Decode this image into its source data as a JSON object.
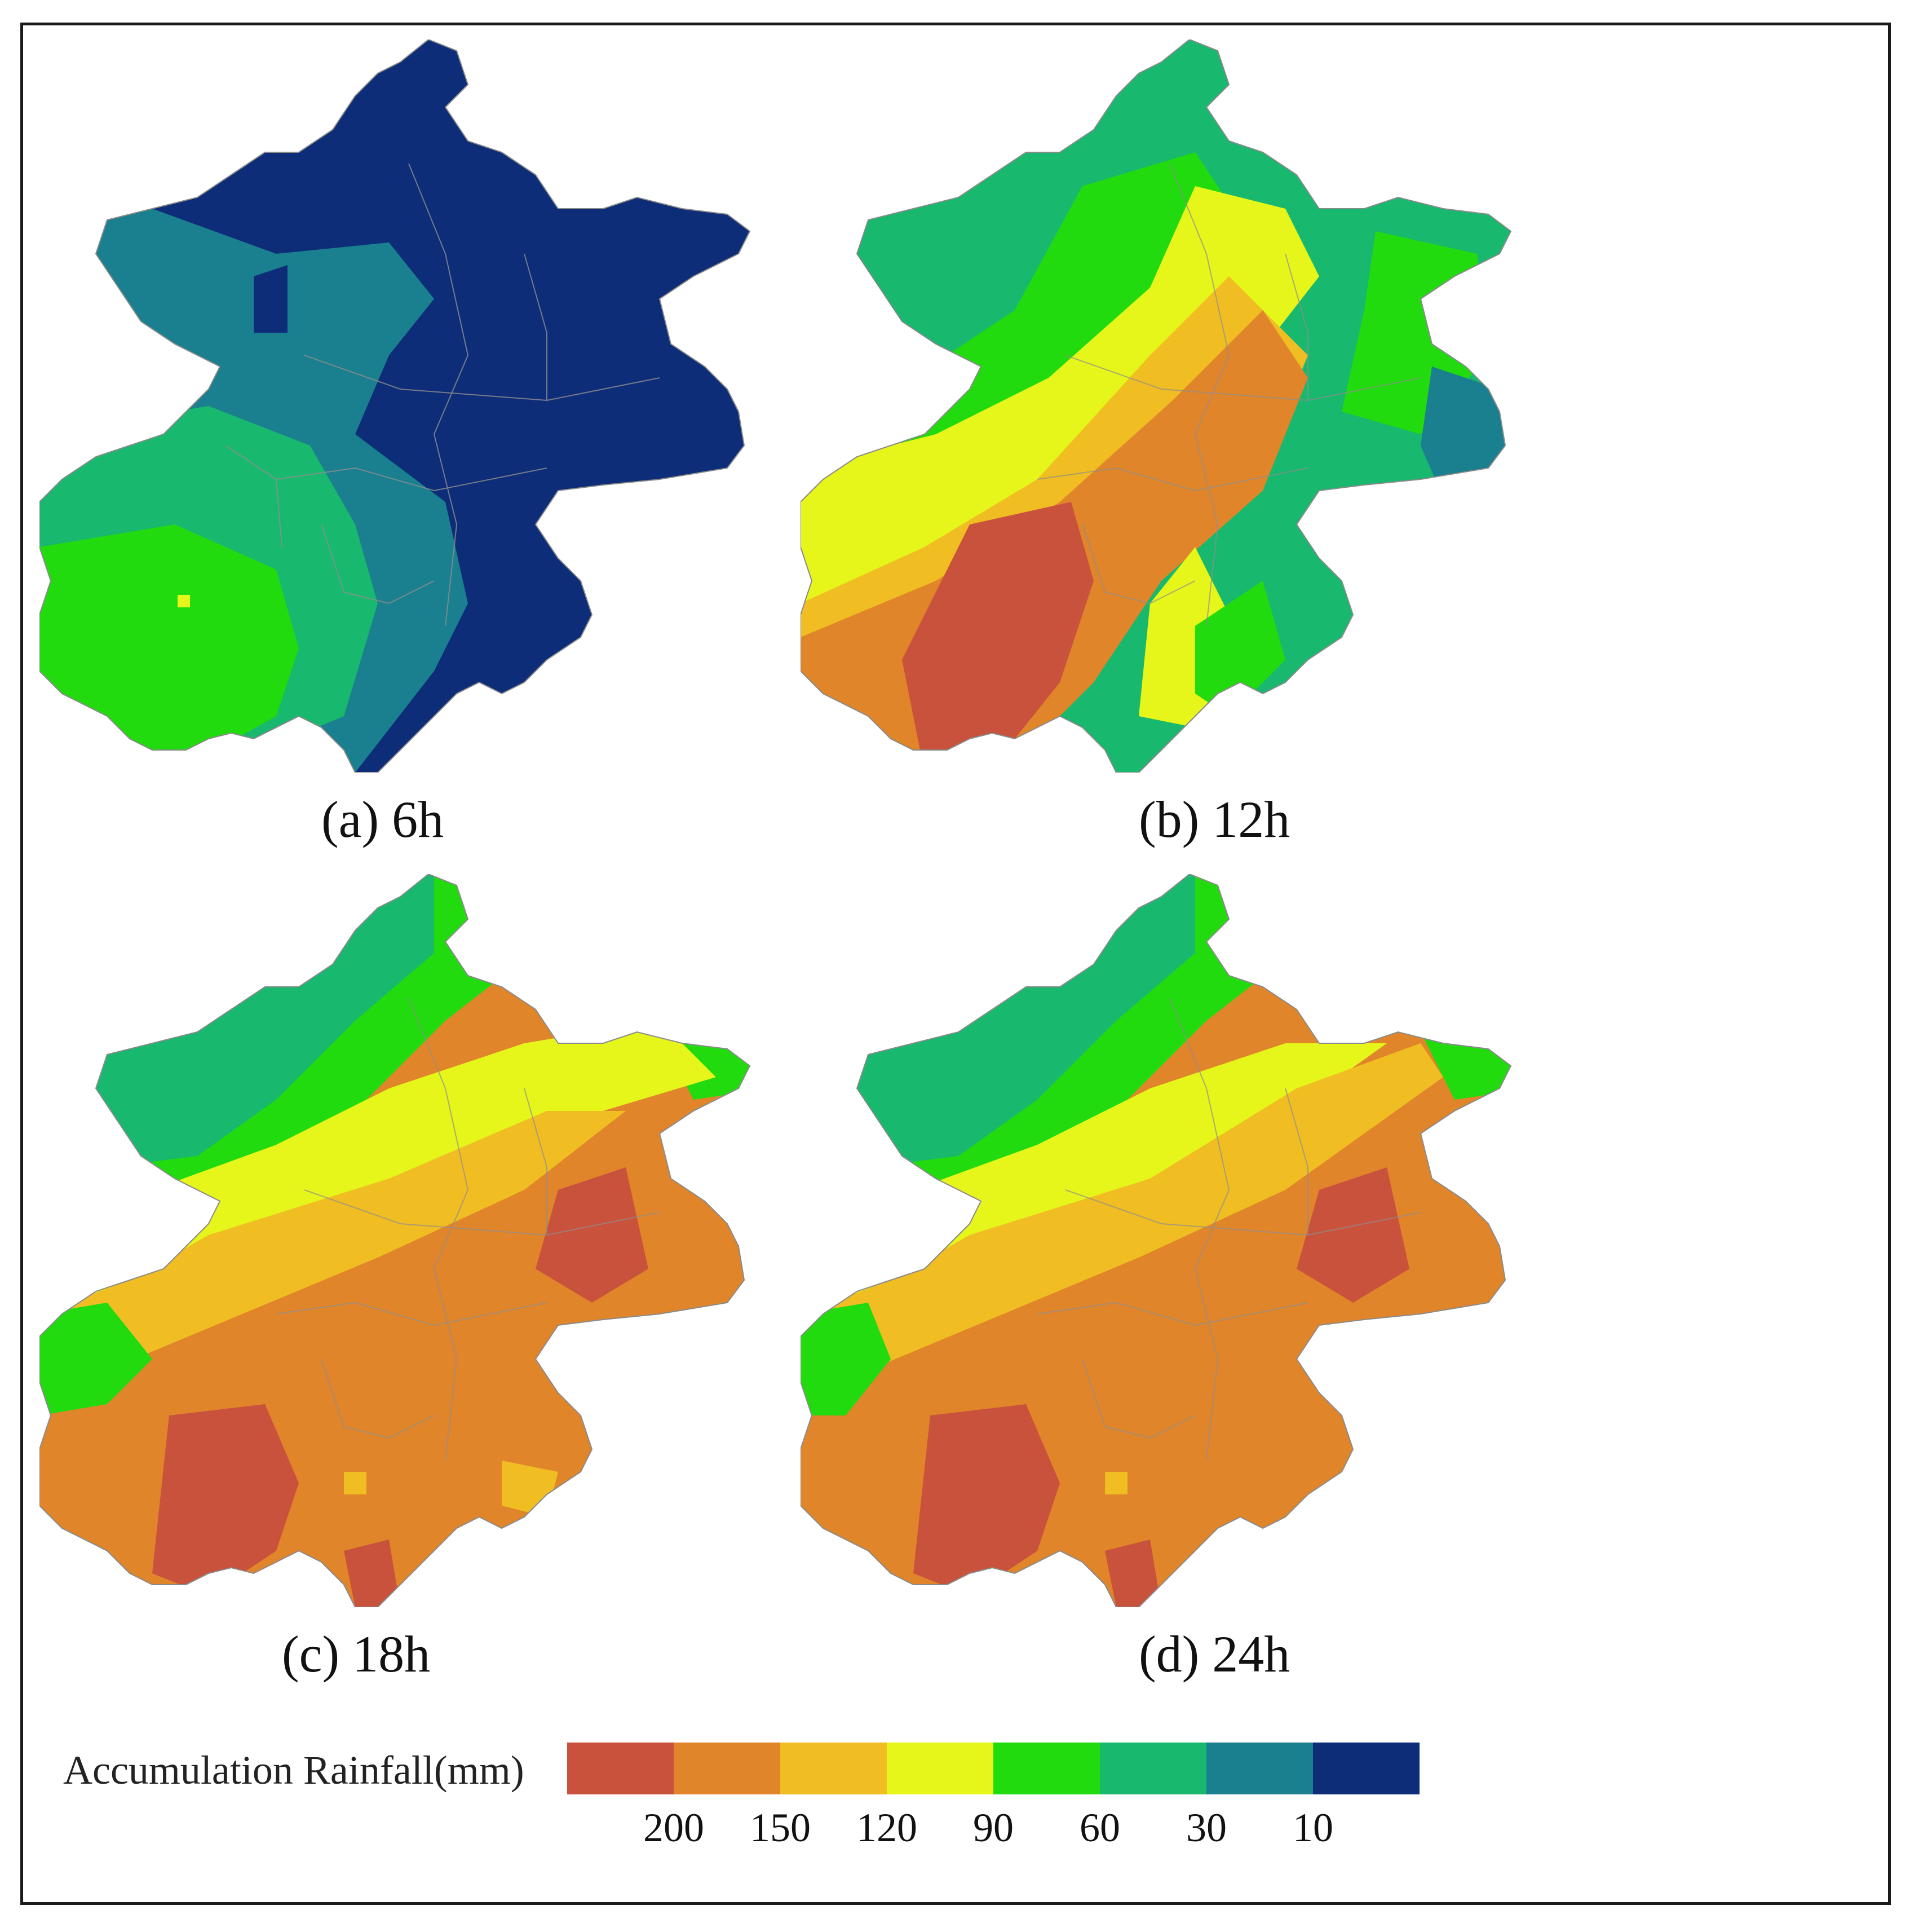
{
  "panels": [
    {
      "id": "a",
      "caption": "(a) 6h",
      "scheme": "a"
    },
    {
      "id": "b",
      "caption": "(b) 12h",
      "scheme": "b"
    },
    {
      "id": "c",
      "caption": "(c) 18h",
      "scheme": "c"
    },
    {
      "id": "d",
      "caption": "(d) 24h",
      "scheme": "d"
    }
  ],
  "legend": {
    "title": "Accumulation Rainfall(mm)",
    "classes": [
      {
        "color": "#C8523C"
      },
      {
        "color": "#E0852A"
      },
      {
        "color": "#F0BD22"
      },
      {
        "color": "#E6F51A"
      },
      {
        "color": "#22DB0F"
      },
      {
        "color": "#18B86E"
      },
      {
        "color": "#1A7F8E"
      },
      {
        "color": "#0D2D78"
      }
    ],
    "ticks": [
      "200",
      "150",
      "120",
      "90",
      "60",
      "30",
      "10"
    ]
  }
}
